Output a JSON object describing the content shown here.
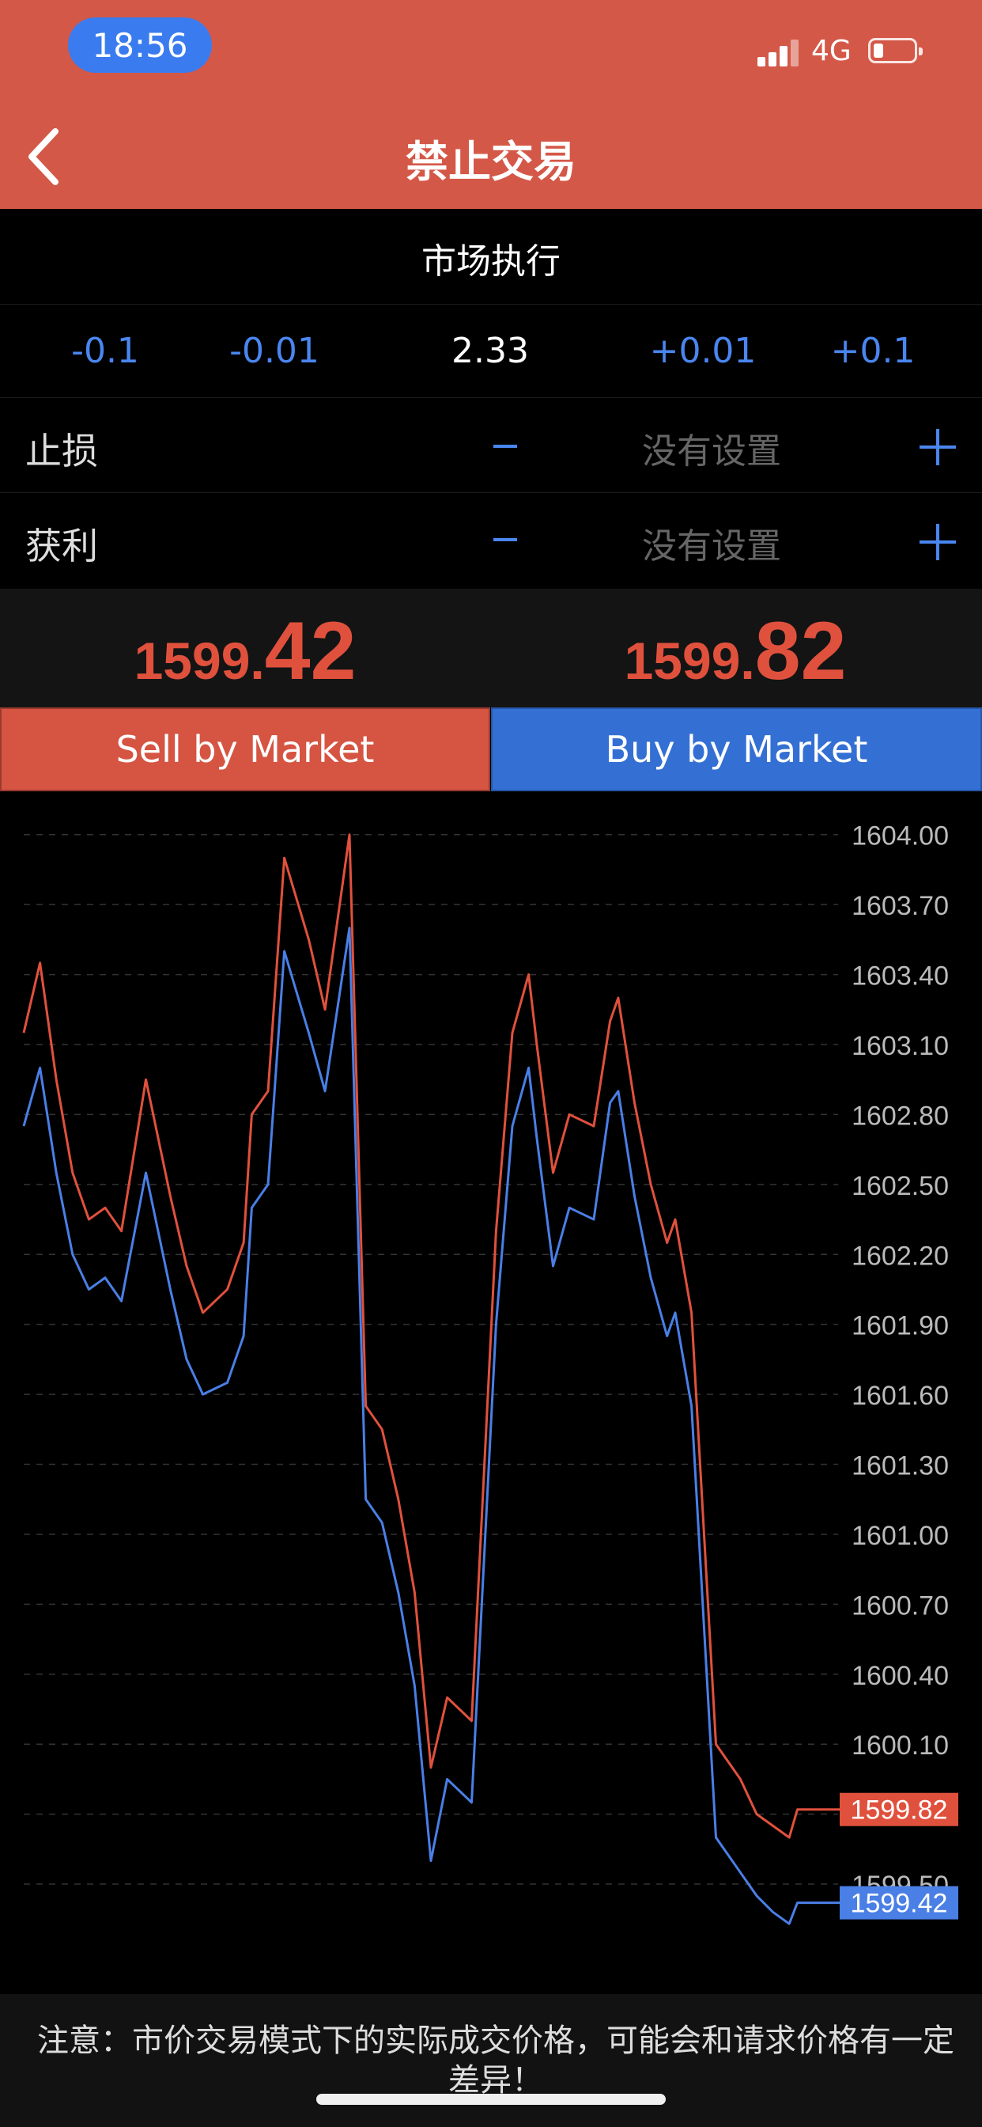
{
  "status_bar": {
    "time": "18:56",
    "network": "4G",
    "battery_percent": 15
  },
  "nav": {
    "title": "禁止交易"
  },
  "execution": {
    "mode": "市场执行",
    "steps": [
      "-0.1",
      "-0.01",
      "+0.01",
      "+0.1"
    ],
    "volume": "2.33",
    "stop_loss": {
      "label": "止损",
      "value": "没有设置"
    },
    "take_profit": {
      "label": "获利",
      "value": "没有设置"
    }
  },
  "prices": {
    "sell": {
      "small": "1599.",
      "big": "42"
    },
    "buy": {
      "small": "1599.",
      "big": "82"
    }
  },
  "buttons": {
    "sell": "Sell by Market",
    "buy": "Buy by Market"
  },
  "colors": {
    "sell": "#D55442",
    "buy": "#3470D3",
    "header": "#D45848",
    "accent": "#4A86F0"
  },
  "chart_data": {
    "type": "line",
    "ylim": [
      1599.3,
      1604.05
    ],
    "y_ticks": [
      "1604.00",
      "1603.70",
      "1603.40",
      "1603.10",
      "1602.80",
      "1602.50",
      "1602.20",
      "1601.90",
      "1601.60",
      "1601.30",
      "1601.00",
      "1600.70",
      "1600.40",
      "1600.10",
      "1599.80",
      "1599.50"
    ],
    "x": [
      0,
      2,
      4,
      6,
      8,
      10,
      12,
      15,
      18,
      20,
      22,
      25,
      27,
      28,
      30,
      32,
      35,
      37,
      40,
      42,
      44,
      46,
      48,
      50,
      52,
      55,
      58,
      60,
      62,
      63,
      65,
      67,
      70,
      72,
      73,
      75,
      77,
      79,
      80,
      82,
      85,
      88,
      90,
      92,
      94,
      95,
      96,
      97,
      98,
      100
    ],
    "series": [
      {
        "values": [
          1603.15,
          1603.45,
          1602.95,
          1602.55,
          1602.35,
          1602.4,
          1602.3,
          1602.95,
          1602.45,
          1602.15,
          1601.95,
          1602.05,
          1602.25,
          1602.8,
          1602.9,
          1603.9,
          1603.55,
          1603.25,
          1604.0,
          1601.55,
          1601.45,
          1601.15,
          1600.75,
          1600.0,
          1600.3,
          1600.2,
          1602.3,
          1603.15,
          1603.4,
          1603.1,
          1602.55,
          1602.8,
          1602.75,
          1603.2,
          1603.3,
          1602.85,
          1602.5,
          1602.25,
          1602.35,
          1601.95,
          1600.1,
          1599.95,
          1599.8,
          1599.75,
          1599.7,
          1599.82,
          1599.82,
          1599.82,
          1599.82,
          1599.82
        ],
        "color": "#E0513D",
        "last_label": "1599.82"
      },
      {
        "values": [
          1602.75,
          1603.0,
          1602.55,
          1602.2,
          1602.05,
          1602.1,
          1602.0,
          1602.55,
          1602.05,
          1601.75,
          1601.6,
          1601.65,
          1601.85,
          1602.4,
          1602.5,
          1603.5,
          1603.15,
          1602.9,
          1603.6,
          1601.15,
          1601.05,
          1600.75,
          1600.35,
          1599.6,
          1599.95,
          1599.85,
          1601.9,
          1602.75,
          1603.0,
          1602.7,
          1602.15,
          1602.4,
          1602.35,
          1602.85,
          1602.9,
          1602.45,
          1602.1,
          1601.85,
          1601.95,
          1601.55,
          1599.7,
          1599.55,
          1599.45,
          1599.38,
          1599.33,
          1599.42,
          1599.42,
          1599.42,
          1599.42,
          1599.42
        ],
        "color": "#4A7FE6",
        "last_label": "1599.42"
      }
    ]
  },
  "footer": {
    "note": "注意：市价交易模式下的实际成交价格，可能会和请求价格有一定差异！"
  }
}
